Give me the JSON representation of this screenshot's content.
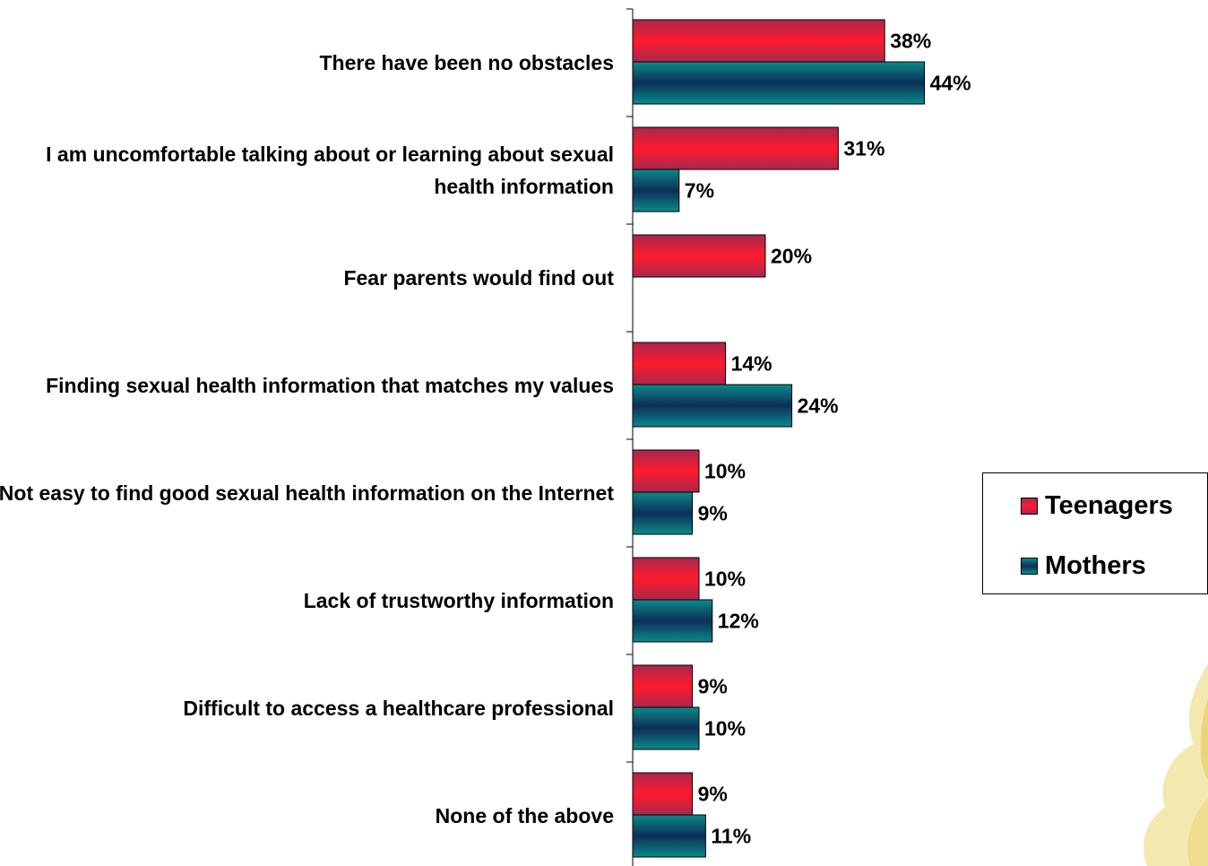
{
  "chart_data": {
    "type": "bar",
    "orientation": "horizontal",
    "categories": [
      "There have been no obstacles",
      "I am uncomfortable talking about or learning about sexual health information",
      "Fear parents would find out",
      "Finding sexual health information that matches my values",
      "Not easy to find good sexual health information on the Internet",
      "Lack of trustworthy information",
      "Difficult to access a healthcare professional",
      "None of the above"
    ],
    "series": [
      {
        "name": "Teenagers",
        "values": [
          38,
          31,
          20,
          14,
          10,
          10,
          9,
          9
        ],
        "color": "#e8203a"
      },
      {
        "name": "Mothers",
        "values": [
          44,
          7,
          null,
          24,
          9,
          12,
          10,
          11
        ],
        "color": "#0f5e6a"
      }
    ],
    "value_suffix": "%",
    "title": "",
    "xlabel": "",
    "ylabel": "",
    "xlim": [
      0,
      100
    ],
    "grid": false,
    "legend_position": "right"
  }
}
